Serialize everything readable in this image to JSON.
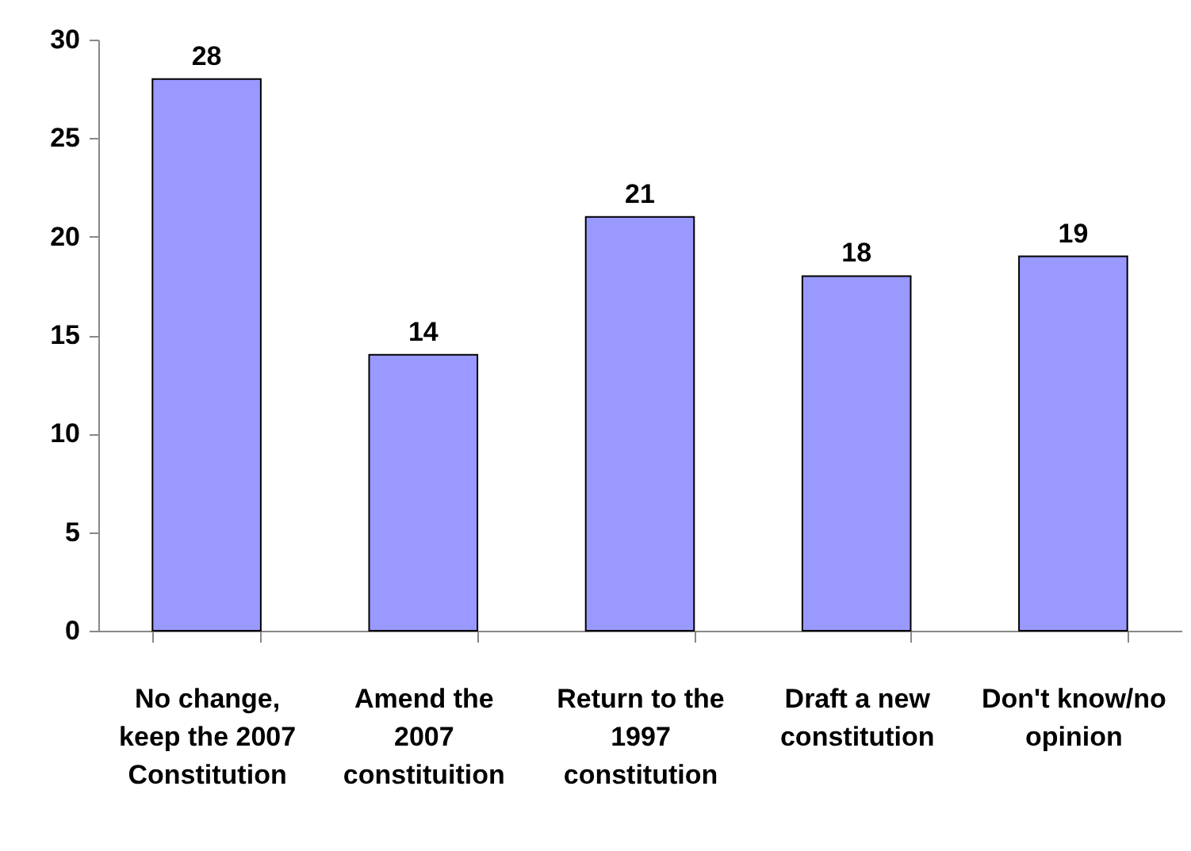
{
  "chart_data": {
    "type": "bar",
    "categories": [
      "No change, keep the 2007 Constitution",
      "Amend the 2007 constituition",
      "Return to the 1997 constitution",
      "Draft a new constitution",
      "Don't know/no opinion"
    ],
    "values": [
      28,
      14,
      21,
      18,
      19
    ],
    "color": "#9999ff",
    "ylim": [
      0,
      30
    ],
    "yticks": [
      0,
      5,
      10,
      15,
      20,
      25,
      30
    ],
    "data_labels": true,
    "grid": false
  }
}
